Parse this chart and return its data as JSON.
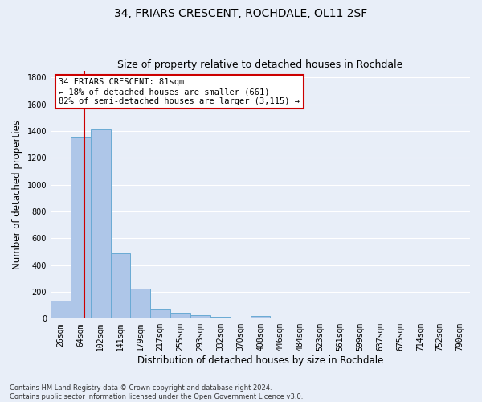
{
  "title_line1": "34, FRIARS CRESCENT, ROCHDALE, OL11 2SF",
  "title_line2": "Size of property relative to detached houses in Rochdale",
  "xlabel": "Distribution of detached houses by size in Rochdale",
  "ylabel": "Number of detached properties",
  "footnote": "Contains HM Land Registry data © Crown copyright and database right 2024.\nContains public sector information licensed under the Open Government Licence v3.0.",
  "bin_labels": [
    "26sqm",
    "64sqm",
    "102sqm",
    "141sqm",
    "179sqm",
    "217sqm",
    "255sqm",
    "293sqm",
    "332sqm",
    "370sqm",
    "408sqm",
    "446sqm",
    "484sqm",
    "523sqm",
    "561sqm",
    "599sqm",
    "637sqm",
    "675sqm",
    "714sqm",
    "752sqm",
    "790sqm"
  ],
  "bar_values": [
    135,
    1355,
    1410,
    490,
    225,
    75,
    45,
    28,
    15,
    0,
    20,
    0,
    0,
    0,
    0,
    0,
    0,
    0,
    0,
    0,
    0
  ],
  "bar_color": "#aec6e8",
  "bar_edgecolor": "#6aaad4",
  "property_line_x": 1.18,
  "annotation_text": "34 FRIARS CRESCENT: 81sqm\n← 18% of detached houses are smaller (661)\n82% of semi-detached houses are larger (3,115) →",
  "annotation_box_facecolor": "#ffffff",
  "annotation_box_edgecolor": "#cc0000",
  "vline_color": "#cc0000",
  "ylim": [
    0,
    1850
  ],
  "yticks": [
    0,
    200,
    400,
    600,
    800,
    1000,
    1200,
    1400,
    1600,
    1800
  ],
  "background_color": "#e8eef8",
  "grid_color": "#ffffff",
  "title_fontsize": 10,
  "subtitle_fontsize": 9,
  "axis_label_fontsize": 8.5,
  "tick_fontsize": 7,
  "annotation_fontsize": 7.5,
  "footnote_fontsize": 6
}
